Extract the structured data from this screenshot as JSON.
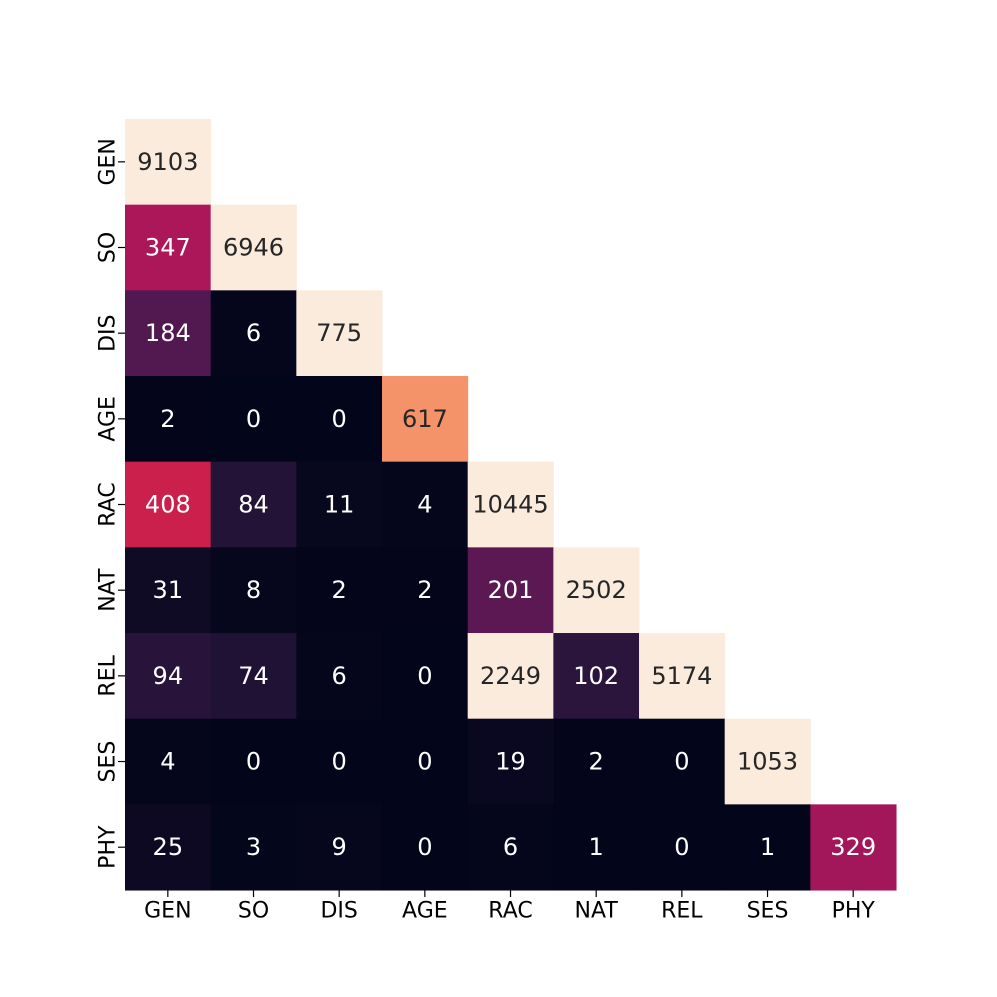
{
  "chart_data": {
    "type": "heatmap",
    "title": "",
    "xlabel": "",
    "ylabel": "",
    "x_categories": [
      "GEN",
      "SO",
      "DIS",
      "AGE",
      "RAC",
      "NAT",
      "REL",
      "SES",
      "PHY"
    ],
    "y_categories": [
      "GEN",
      "SO",
      "DIS",
      "AGE",
      "RAC",
      "NAT",
      "REL",
      "SES",
      "PHY"
    ],
    "mask": "upper-triangle-excluding-diagonal",
    "values": [
      [
        9103
      ],
      [
        347,
        6946
      ],
      [
        184,
        6,
        775
      ],
      [
        2,
        0,
        0,
        617
      ],
      [
        408,
        84,
        11,
        4,
        10445
      ],
      [
        31,
        8,
        2,
        2,
        201,
        2502
      ],
      [
        94,
        74,
        6,
        0,
        2249,
        102,
        5174
      ],
      [
        4,
        0,
        0,
        0,
        19,
        2,
        0,
        1053
      ],
      [
        25,
        3,
        9,
        0,
        6,
        1,
        0,
        1,
        329
      ]
    ],
    "color_range": [
      0,
      700
    ],
    "colormap": "rocket"
  }
}
